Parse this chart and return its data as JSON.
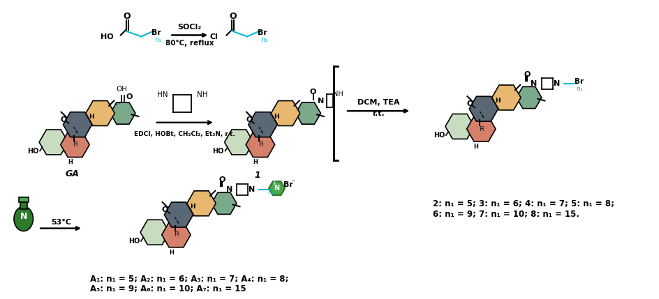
{
  "background_color": "#ffffff",
  "teal_color": "#00b8d4",
  "green_pyridine_dark": "#2d7a2d",
  "green_pyridine_light": "#4aaa4a",
  "ring_light_green": "#c8dcc0",
  "ring_salmon": "#d4806a",
  "ring_slate": "#5a6875",
  "ring_orange": "#e8b870",
  "ring_dark_green": "#7aaa8a",
  "ring_green2": "#8ab898",
  "text_products_top": "2: n₁ = 5; 3: n₁ = 6; 4: n₁ = 7; 5: n₁ = 8;",
  "text_products_top2": "6: n₁ = 9; 7: n₁ = 10; 8: n₁ = 15.",
  "text_products_bot": "A₁: n₁ = 5; A₂: n₁ = 6; A₃: n₁ = 7; A₄: n₁ = 8;",
  "text_products_bot2": "A₅: n₁ = 9; A₆: n₁ = 10; A₇: n₁ = 15",
  "figsize": [
    9.45,
    4.29
  ],
  "dpi": 100
}
